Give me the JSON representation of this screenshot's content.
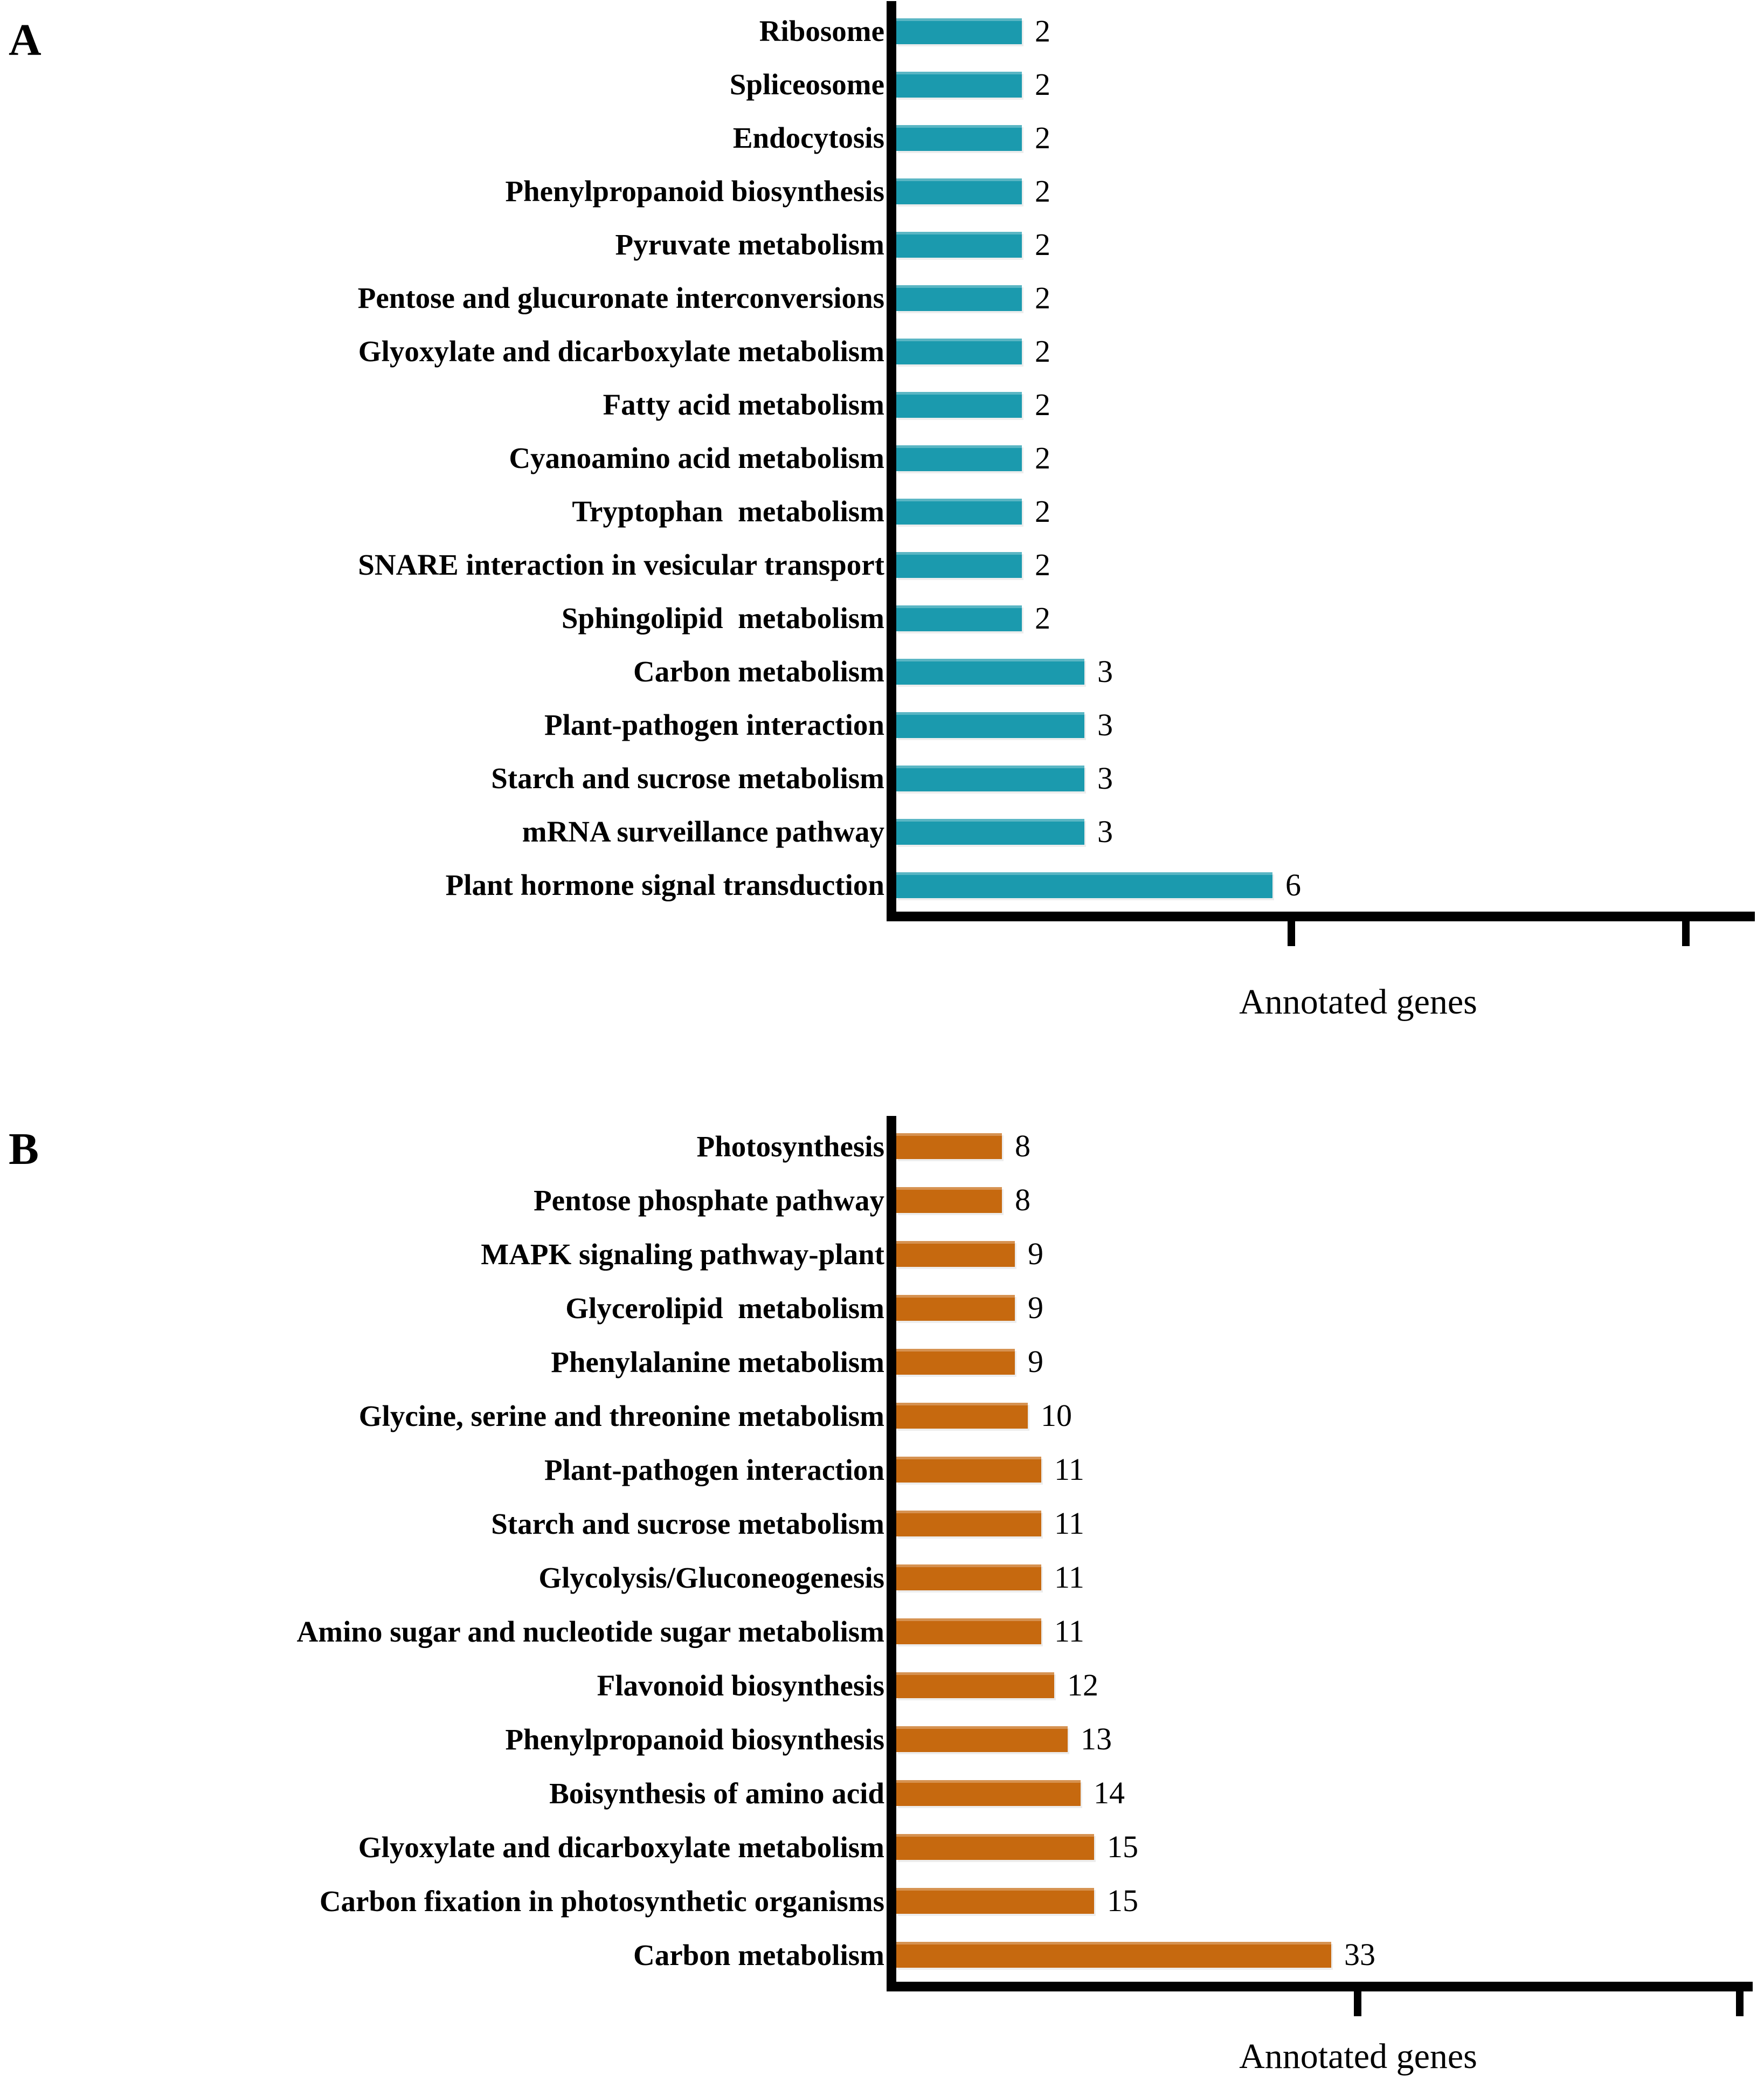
{
  "chart_data": [
    {
      "type": "bar",
      "orientation": "horizontal",
      "panel_label": "A",
      "xlabel": "Annotated genes",
      "ylabel": "",
      "bar_color": "#1b9aae",
      "grid": false,
      "legend": false,
      "categories": [
        "Ribosome",
        "Spliceosome",
        "Endocytosis",
        "Phenylpropanoid biosynthesis",
        "Pyruvate metabolism",
        "Pentose and glucuronate interconversions",
        "Glyoxylate and dicarboxylate metabolism",
        "Fatty acid metabolism",
        "Cyanoamino acid metabolism",
        "Tryptophan  metabolism",
        "SNARE interaction in vesicular transport",
        "Sphingolipid  metabolism",
        "Carbon metabolism",
        "Plant-pathogen interaction",
        "Starch and sucrose metabolism",
        "mRNA surveillance pathway",
        "Plant hormone signal transduction"
      ],
      "values": [
        2,
        2,
        2,
        2,
        2,
        2,
        2,
        2,
        2,
        2,
        2,
        2,
        3,
        3,
        3,
        3,
        6
      ],
      "xlim": [
        0,
        13.7
      ],
      "xticks_unlabeled": [
        6.3,
        12.6
      ]
    },
    {
      "type": "bar",
      "orientation": "horizontal",
      "panel_label": "B",
      "xlabel": "Annotated genes",
      "ylabel": "",
      "bar_color": "#c6690f",
      "grid": false,
      "legend": false,
      "categories": [
        "Photosynthesis",
        "Pentose phosphate pathway",
        "MAPK signaling pathway-plant",
        "Glycerolipid  metabolism",
        "Phenylalanine metabolism",
        "Glycine, serine and threonine metabolism",
        "Plant-pathogen interaction",
        "Starch and sucrose metabolism",
        "Glycolysis/Gluconeogenesis",
        "Amino sugar and nucleotide sugar metabolism",
        "Flavonoid biosynthesis",
        "Phenylpropanoid biosynthesis",
        "Boisynthesis of amino acid",
        "Glyoxylate and dicarboxylate metabolism",
        "Carbon fixation in photosynthetic organisms",
        "Carbon metabolism"
      ],
      "values": [
        8,
        8,
        9,
        9,
        9,
        10,
        11,
        11,
        11,
        11,
        12,
        13,
        14,
        15,
        15,
        33
      ],
      "xlim": [
        0,
        65
      ],
      "xticks_unlabeled": [
        35,
        64
      ]
    }
  ]
}
